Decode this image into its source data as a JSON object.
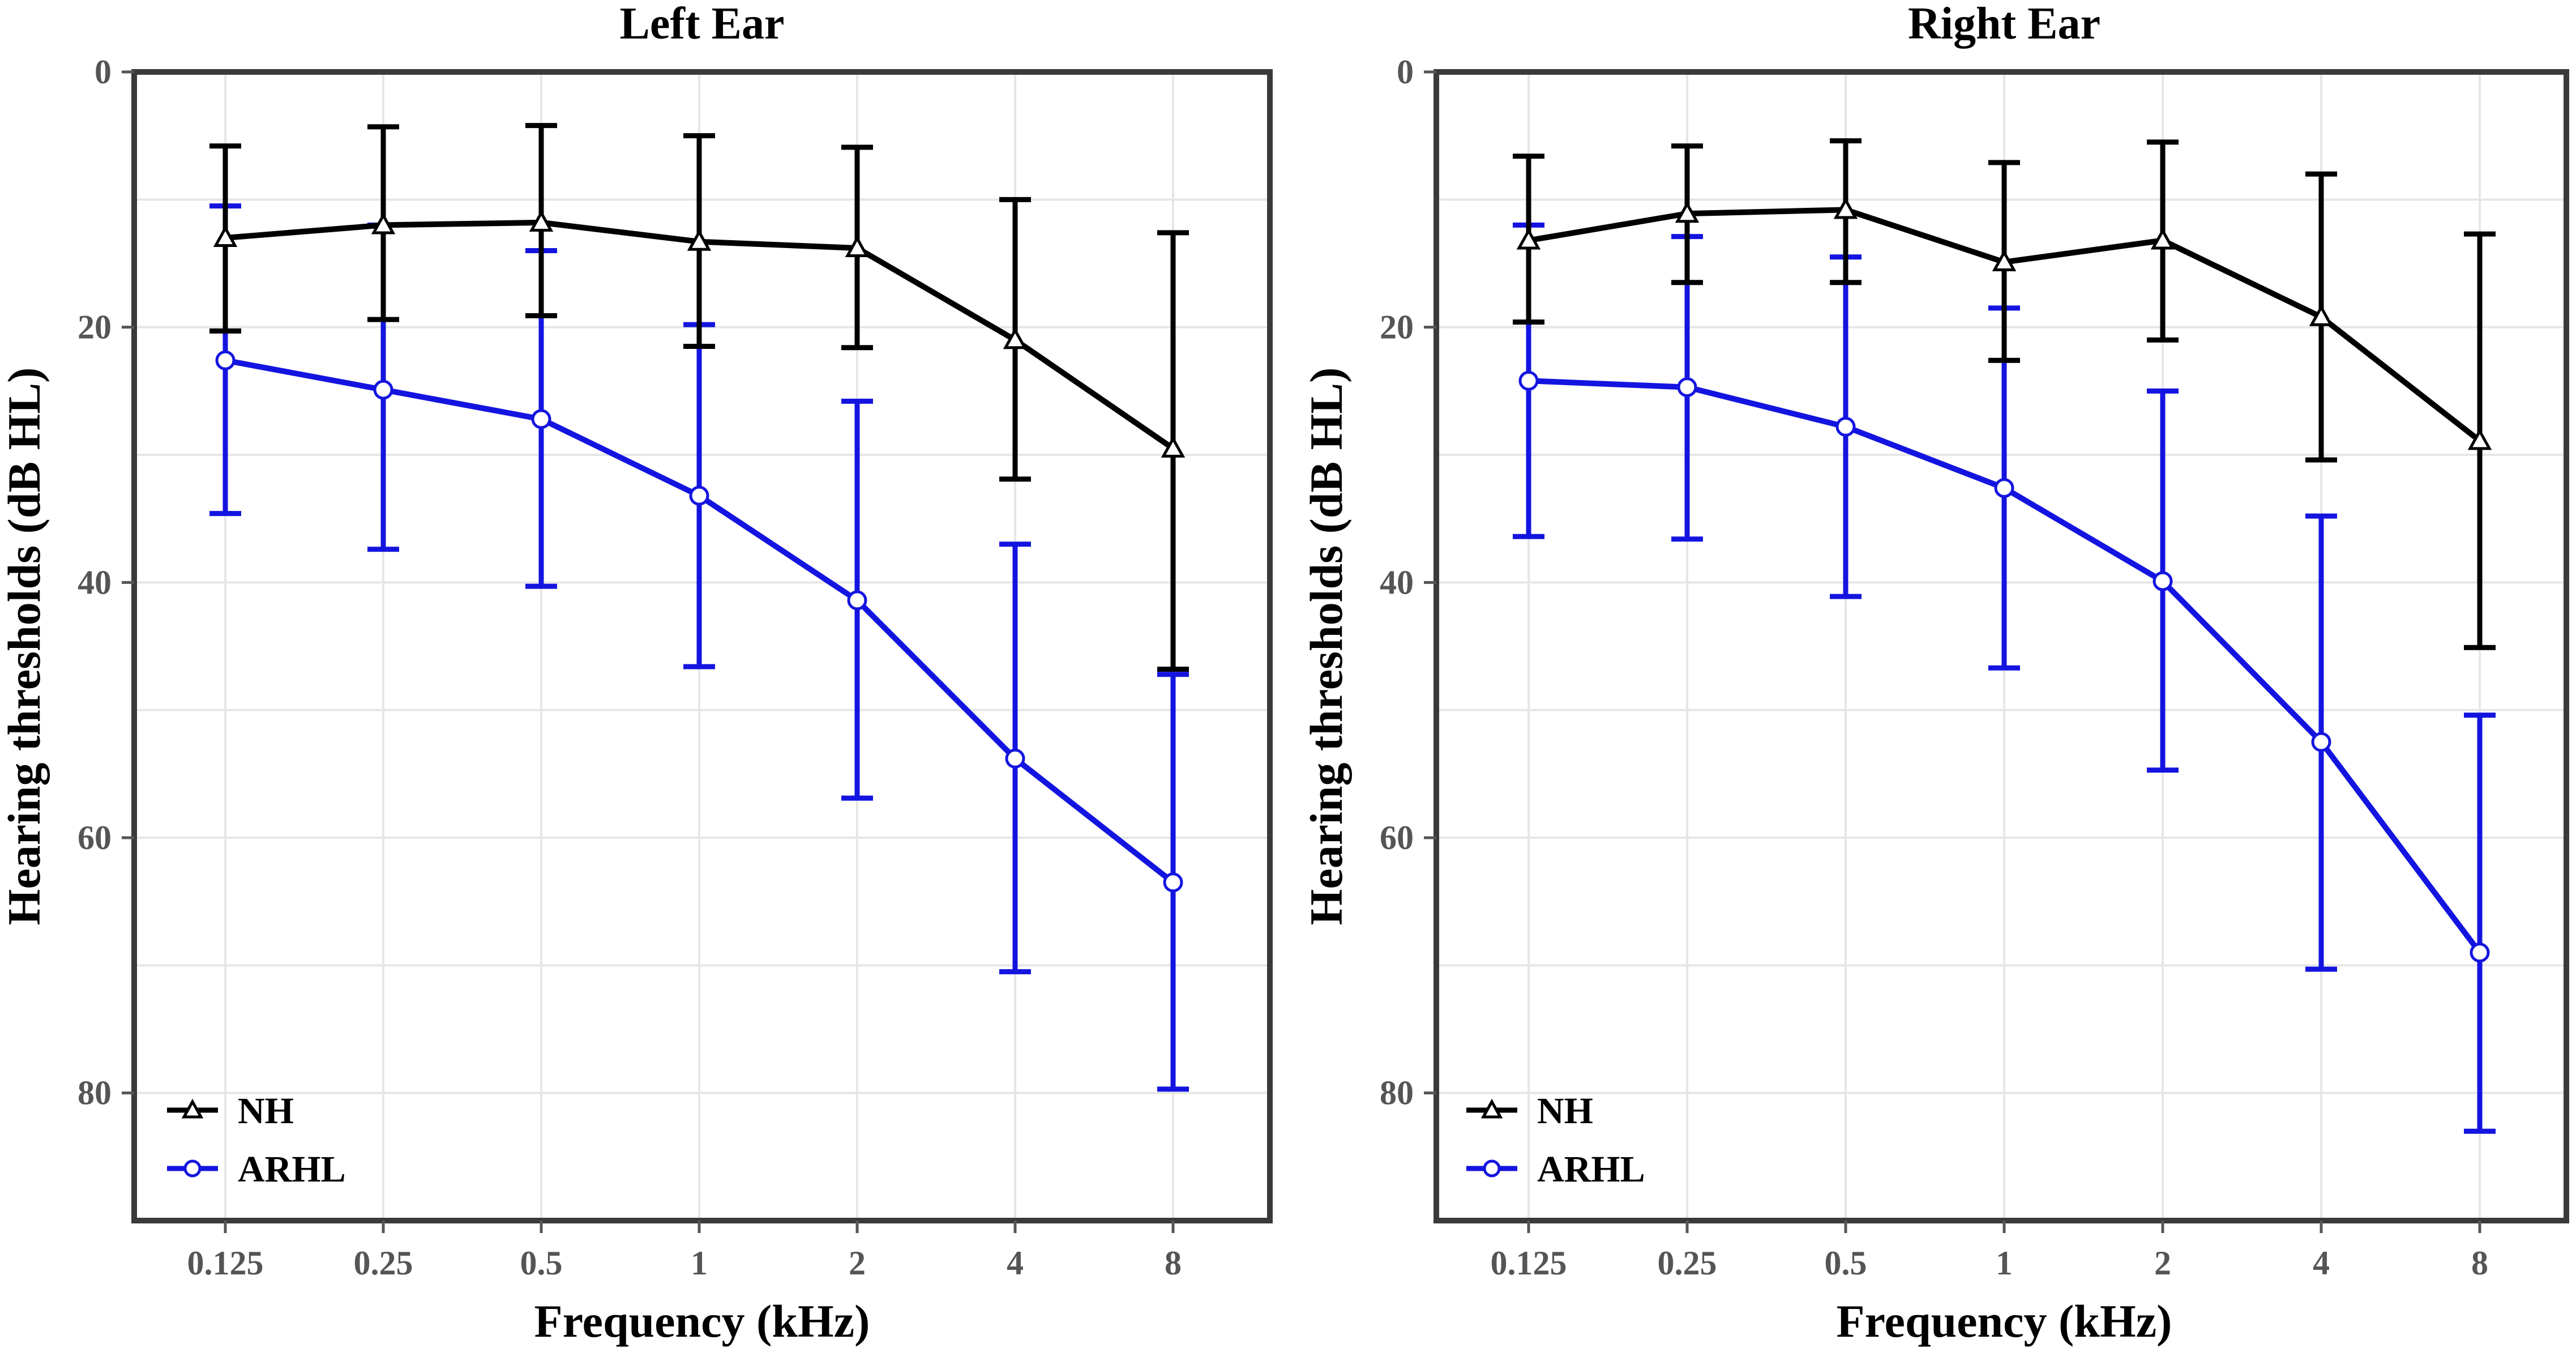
{
  "chart_data": [
    {
      "type": "line",
      "title": "Left Ear",
      "xlabel": "Frequency (kHz)",
      "ylabel": "Hearing thresholds (dB HL)",
      "categories": [
        "0.125",
        "0.25",
        "0.5",
        "1",
        "2",
        "4",
        "8"
      ],
      "ylim": [
        0,
        90
      ],
      "y_inverted": true,
      "y_ticks": [
        0,
        20,
        40,
        60,
        80
      ],
      "y_tick_labels": [
        "0",
        "20",
        "40",
        "60",
        "80"
      ],
      "grid": true,
      "legend_position": "bottom-left",
      "series": [
        {
          "name": "NH",
          "marker": "triangle",
          "color": "#000000",
          "values": [
            13,
            12,
            11.8,
            13.3,
            13.8,
            21,
            29.5
          ],
          "error_low": [
            5.8,
            4.3,
            4.2,
            5.0,
            5.9,
            10.0,
            12.6
          ],
          "error_high": [
            20.3,
            19.4,
            19.1,
            21.5,
            21.6,
            31.9,
            46.8
          ]
        },
        {
          "name": "ARHL",
          "marker": "circle",
          "color": "#1414e0",
          "values": [
            22.6,
            24.9,
            27.2,
            33.2,
            41.4,
            53.8,
            63.5
          ],
          "error_low": [
            10.5,
            12.0,
            14.0,
            19.8,
            25.8,
            37.0,
            47.2
          ],
          "error_high": [
            34.6,
            37.4,
            40.3,
            46.6,
            56.9,
            70.5,
            79.7
          ]
        }
      ]
    },
    {
      "type": "line",
      "title": "Right Ear",
      "xlabel": "Frequency (kHz)",
      "ylabel": "Hearing thresholds (dB HL)",
      "categories": [
        "0.125",
        "0.25",
        "0.5",
        "1",
        "2",
        "4",
        "8"
      ],
      "ylim": [
        0,
        90
      ],
      "y_inverted": true,
      "y_ticks": [
        0,
        20,
        40,
        60,
        80
      ],
      "y_tick_labels": [
        "0",
        "20",
        "40",
        "60",
        "80"
      ],
      "grid": true,
      "legend_position": "bottom-left",
      "series": [
        {
          "name": "NH",
          "marker": "triangle",
          "color": "#000000",
          "values": [
            13.2,
            11.1,
            10.8,
            14.9,
            13.2,
            19.2,
            28.9
          ],
          "error_low": [
            6.6,
            5.8,
            5.4,
            7.1,
            5.5,
            8.0,
            12.7
          ],
          "error_high": [
            19.6,
            16.5,
            16.5,
            22.6,
            21.0,
            30.4,
            45.1
          ]
        },
        {
          "name": "ARHL",
          "marker": "circle",
          "color": "#1414e0",
          "values": [
            24.2,
            24.7,
            27.8,
            32.6,
            39.9,
            52.5,
            69.0
          ],
          "error_low": [
            12.0,
            12.9,
            14.5,
            18.5,
            25.0,
            34.8,
            50.4
          ],
          "error_high": [
            36.4,
            36.6,
            41.1,
            46.7,
            54.7,
            70.3,
            83.0
          ]
        }
      ]
    }
  ]
}
